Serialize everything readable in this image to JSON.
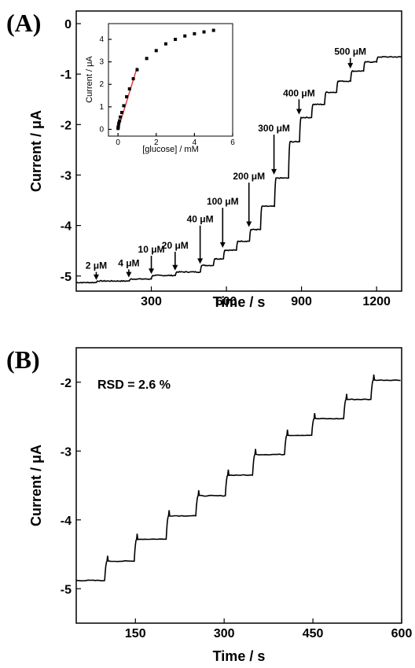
{
  "chart_data": [
    {
      "panel": "(A)",
      "type": "line",
      "xlabel": "Time / s",
      "ylabel": "Current / μA",
      "xlim": [
        0,
        1300
      ],
      "ylim": [
        -5.3,
        0.25
      ],
      "xticks": [
        300,
        600,
        900,
        1200
      ],
      "yticks": [
        0,
        -1,
        -2,
        -3,
        -4,
        -5
      ],
      "steps": [
        {
          "t": 80,
          "i": -5.1
        },
        {
          "t": 210,
          "i": -5.06
        },
        {
          "t": 300,
          "i": -4.99
        },
        {
          "t": 395,
          "i": -4.92
        },
        {
          "t": 495,
          "i": -4.79
        },
        {
          "t": 545,
          "i": -4.66
        },
        {
          "t": 585,
          "i": -4.49
        },
        {
          "t": 640,
          "i": -4.31
        },
        {
          "t": 690,
          "i": -4.08
        },
        {
          "t": 735,
          "i": -3.62
        },
        {
          "t": 790,
          "i": -3.06
        },
        {
          "t": 845,
          "i": -2.34
        },
        {
          "t": 890,
          "i": -1.86
        },
        {
          "t": 940,
          "i": -1.6
        },
        {
          "t": 990,
          "i": -1.36
        },
        {
          "t": 1040,
          "i": -1.14
        },
        {
          "t": 1095,
          "i": -0.94
        },
        {
          "t": 1145,
          "i": -0.76
        },
        {
          "t": 1200,
          "i": -0.66
        }
      ],
      "start_current": -5.13,
      "annotations": [
        {
          "text": "2 μM",
          "x": 80,
          "tip": -5.08,
          "tail": -4.92
        },
        {
          "text": "4 μM",
          "x": 210,
          "tip": -5.03,
          "tail": -4.87
        },
        {
          "text": "10 μM",
          "x": 300,
          "tip": -4.96,
          "tail": -4.6
        },
        {
          "text": "20 μM",
          "x": 395,
          "tip": -4.89,
          "tail": -4.52
        },
        {
          "text": "40 μM",
          "x": 495,
          "tip": -4.76,
          "tail": -4.0
        },
        {
          "text": "100 μM",
          "x": 585,
          "tip": -4.44,
          "tail": -3.65
        },
        {
          "text": "200 μM",
          "x": 690,
          "tip": -4.03,
          "tail": -3.15
        },
        {
          "text": "300 μM",
          "x": 790,
          "tip": -2.99,
          "tail": -2.2
        },
        {
          "text": "400 μM",
          "x": 890,
          "tip": -1.8,
          "tail": -1.5
        },
        {
          "text": "500 μM",
          "x": 1095,
          "tip": -0.89,
          "tail": -0.68
        }
      ],
      "inset": {
        "type": "scatter",
        "xlabel": "[glucose] / mM",
        "ylabel": "Current / μA",
        "xlim": [
          -0.5,
          6
        ],
        "ylim": [
          -0.3,
          4.7
        ],
        "xticks": [
          0,
          2,
          4,
          6
        ],
        "yticks": [
          0,
          1,
          2,
          3,
          4
        ],
        "x": [
          0.002,
          0.006,
          0.02,
          0.04,
          0.08,
          0.12,
          0.2,
          0.3,
          0.45,
          0.6,
          0.8,
          1.0,
          1.5,
          2.0,
          2.5,
          3.0,
          3.5,
          4.0,
          4.5,
          5.0
        ],
        "y": [
          0.04,
          0.08,
          0.14,
          0.27,
          0.38,
          0.55,
          0.75,
          1.05,
          1.45,
          1.8,
          2.25,
          2.65,
          3.15,
          3.5,
          3.8,
          4.0,
          4.15,
          4.25,
          4.33,
          4.4
        ],
        "fit": {
          "x": [
            0,
            1.0
          ],
          "y": [
            0.0,
            2.75
          ],
          "color": "#e03030"
        }
      }
    },
    {
      "panel": "(B)",
      "type": "line",
      "xlabel": "Time / s",
      "ylabel": "Current / μA",
      "xlim": [
        50,
        600
      ],
      "ylim": [
        -5.5,
        -1.5
      ],
      "xticks": [
        150,
        300,
        450,
        600
      ],
      "yticks": [
        -2,
        -3,
        -4,
        -5
      ],
      "annotation": "RSD = 2.6 %",
      "start_current": -4.88,
      "steps": [
        {
          "t": 95,
          "i": -4.6
        },
        {
          "t": 148,
          "i": -4.28
        },
        {
          "t": 200,
          "i": -3.94
        },
        {
          "t": 250,
          "i": -3.65
        },
        {
          "t": 300,
          "i": -3.35
        },
        {
          "t": 348,
          "i": -3.05
        },
        {
          "t": 400,
          "i": -2.77
        },
        {
          "t": 448,
          "i": -2.53
        },
        {
          "t": 500,
          "i": -2.25
        },
        {
          "t": 548,
          "i": -1.97
        }
      ]
    }
  ]
}
